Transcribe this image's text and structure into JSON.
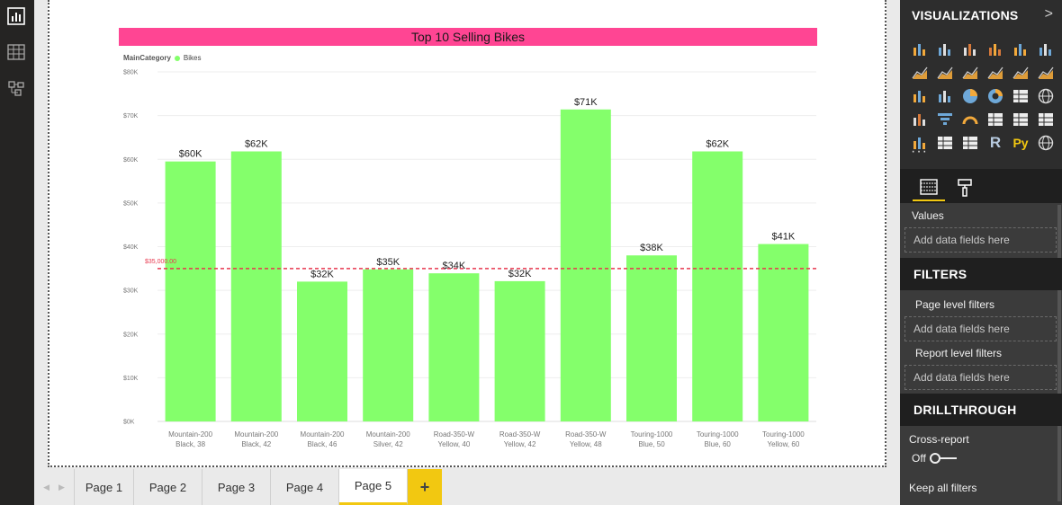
{
  "left_rail": {
    "items": [
      {
        "name": "report-view-icon",
        "active": true
      },
      {
        "name": "data-view-icon",
        "active": false
      },
      {
        "name": "model-view-icon",
        "active": false
      }
    ]
  },
  "report": {
    "title": "Top 10 Selling Bikes",
    "title_bg": "#ff4593",
    "legend": {
      "title": "MainCategory",
      "item": "Bikes",
      "item_color": "#84ff6b"
    }
  },
  "chart_data": {
    "type": "bar",
    "title": "Top 10 Selling Bikes",
    "legend_title": "MainCategory",
    "series": [
      {
        "name": "Bikes",
        "color": "#84ff6b",
        "values": [
          59500,
          61800,
          32000,
          34800,
          33900,
          32100,
          71400,
          38000,
          61800,
          40600
        ],
        "labels": [
          "$60K",
          "$62K",
          "$32K",
          "$35K",
          "$34K",
          "$32K",
          "$71K",
          "$38K",
          "$62K",
          "$41K"
        ]
      }
    ],
    "categories": [
      [
        "Mountain-200",
        "Black, 38"
      ],
      [
        "Mountain-200",
        "Black, 42"
      ],
      [
        "Mountain-200",
        "Black, 46"
      ],
      [
        "Mountain-200",
        "Silver, 42"
      ],
      [
        "Road-350-W",
        "Yellow, 40"
      ],
      [
        "Road-350-W",
        "Yellow, 42"
      ],
      [
        "Road-350-W",
        "Yellow, 48"
      ],
      [
        "Touring-1000",
        "Blue, 50"
      ],
      [
        "Touring-1000",
        "Blue, 60"
      ],
      [
        "Touring-1000",
        "Yellow, 60"
      ]
    ],
    "y_ticks": [
      "$0K",
      "$10K",
      "$20K",
      "$30K",
      "$40K",
      "$50K",
      "$60K",
      "$70K",
      "$80K"
    ],
    "ylim": [
      0,
      80000
    ],
    "reference_line": {
      "value": 35000,
      "label": "$35,000.00",
      "color": "#e8384f",
      "style": "dashed"
    },
    "grid": true,
    "legend_position": "top-left"
  },
  "tabs": {
    "pages": [
      "Page 1",
      "Page 2",
      "Page 3",
      "Page 4",
      "Page 5"
    ],
    "active_index": 4,
    "add_label": "+"
  },
  "viz_pane": {
    "header": "VISUALIZATIONS",
    "chevron": ">",
    "icons": [
      "stacked-bar-chart-icon",
      "stacked-column-chart-icon",
      "clustered-bar-chart-icon",
      "clustered-column-chart-icon",
      "100-stacked-bar-chart-icon",
      "100-stacked-column-chart-icon",
      "line-chart-icon",
      "area-chart-icon",
      "stacked-area-chart-icon",
      "line-column-chart-icon",
      "line-clustered-column-chart-icon",
      "ribbon-chart-icon",
      "waterfall-chart-icon",
      "scatter-chart-icon",
      "pie-chart-icon",
      "donut-chart-icon",
      "treemap-icon",
      "map-icon",
      "filled-map-icon",
      "funnel-icon",
      "gauge-icon",
      "card-icon",
      "multi-row-card-icon",
      "kpi-icon",
      "slicer-icon",
      "table-icon",
      "matrix-icon",
      "r-script-visual-icon",
      "python-visual-icon",
      "arcgis-map-icon"
    ],
    "more": "···",
    "sub_tabs": [
      "fields-tab-icon",
      "format-paint-roller-icon"
    ],
    "values_label": "Values",
    "values_placeholder": "Add data fields here",
    "filters_header": "FILTERS",
    "page_filters_label": "Page level filters",
    "page_filters_placeholder": "Add data fields here",
    "report_filters_label": "Report level filters",
    "report_filters_placeholder": "Add data fields here",
    "drillthrough_header": "DRILLTHROUGH",
    "cross_report_label": "Cross-report",
    "cross_report_state": "Off",
    "keep_all_filters_label": "Keep all filters"
  }
}
